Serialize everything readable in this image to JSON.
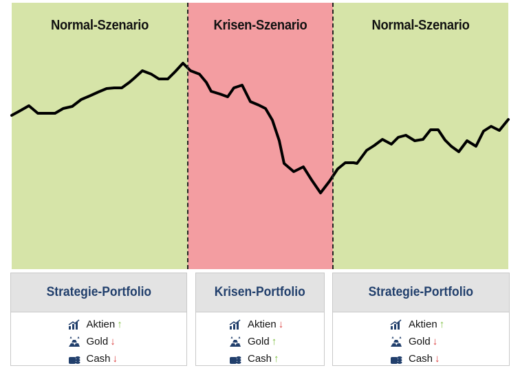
{
  "colors": {
    "normal": "#d6e4a8",
    "crisis": "#f39da1",
    "line": "#000000",
    "panel_title": "#213f6c",
    "arrow_up": "#7dbf3f",
    "arrow_down": "#d93a3a"
  },
  "scenarios": [
    {
      "title": "Normal-Szenario",
      "kind": "normal"
    },
    {
      "title": "Krisen-Szenario",
      "kind": "crisis"
    },
    {
      "title": "Normal-Szenario",
      "kind": "normal"
    }
  ],
  "portfolios": [
    {
      "title": "Strategie-Portfolio",
      "items": [
        {
          "label": "Aktien",
          "icon": "stocks-icon",
          "arrow": "up",
          "glyph": "↑"
        },
        {
          "label": "Gold",
          "icon": "gold-icon",
          "arrow": "down",
          "glyph": "↓"
        },
        {
          "label": "Cash",
          "icon": "cash-icon",
          "arrow": "down",
          "glyph": "↓"
        }
      ]
    },
    {
      "title": "Krisen-Portfolio",
      "items": [
        {
          "label": "Aktien",
          "icon": "stocks-icon",
          "arrow": "down",
          "glyph": "↓"
        },
        {
          "label": "Gold",
          "icon": "gold-icon",
          "arrow": "up",
          "glyph": "↑"
        },
        {
          "label": "Cash",
          "icon": "cash-icon",
          "arrow": "up",
          "glyph": "↑"
        }
      ]
    },
    {
      "title": "Strategie-Portfolio",
      "items": [
        {
          "label": "Aktien",
          "icon": "stocks-icon",
          "arrow": "up",
          "glyph": "↑"
        },
        {
          "label": "Gold",
          "icon": "gold-icon",
          "arrow": "down",
          "glyph": "↓"
        },
        {
          "label": "Cash",
          "icon": "cash-icon",
          "arrow": "down",
          "glyph": "↓"
        }
      ]
    }
  ]
}
